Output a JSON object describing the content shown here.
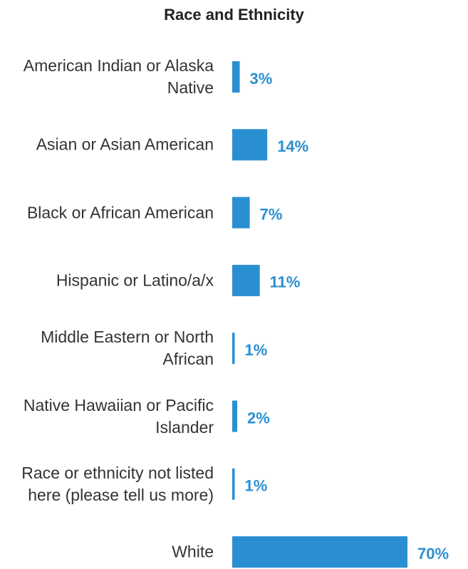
{
  "chart_data": {
    "type": "bar",
    "orientation": "horizontal",
    "title": "Race and Ethnicity",
    "categories": [
      "American Indian or Alaska Native",
      "Asian or Asian American",
      "Black or African American",
      "Hispanic or Latino/a/x",
      "Middle Eastern or North African",
      "Native Hawaiian or Pacific Islander",
      "Race or ethnicity not listed here (please tell us more)",
      "White"
    ],
    "values": [
      3,
      14,
      7,
      11,
      1,
      2,
      1,
      70
    ],
    "value_labels": [
      "3%",
      "14%",
      "7%",
      "11%",
      "1%",
      "2%",
      "1%",
      "70%"
    ],
    "color": "#2a8fd1"
  }
}
